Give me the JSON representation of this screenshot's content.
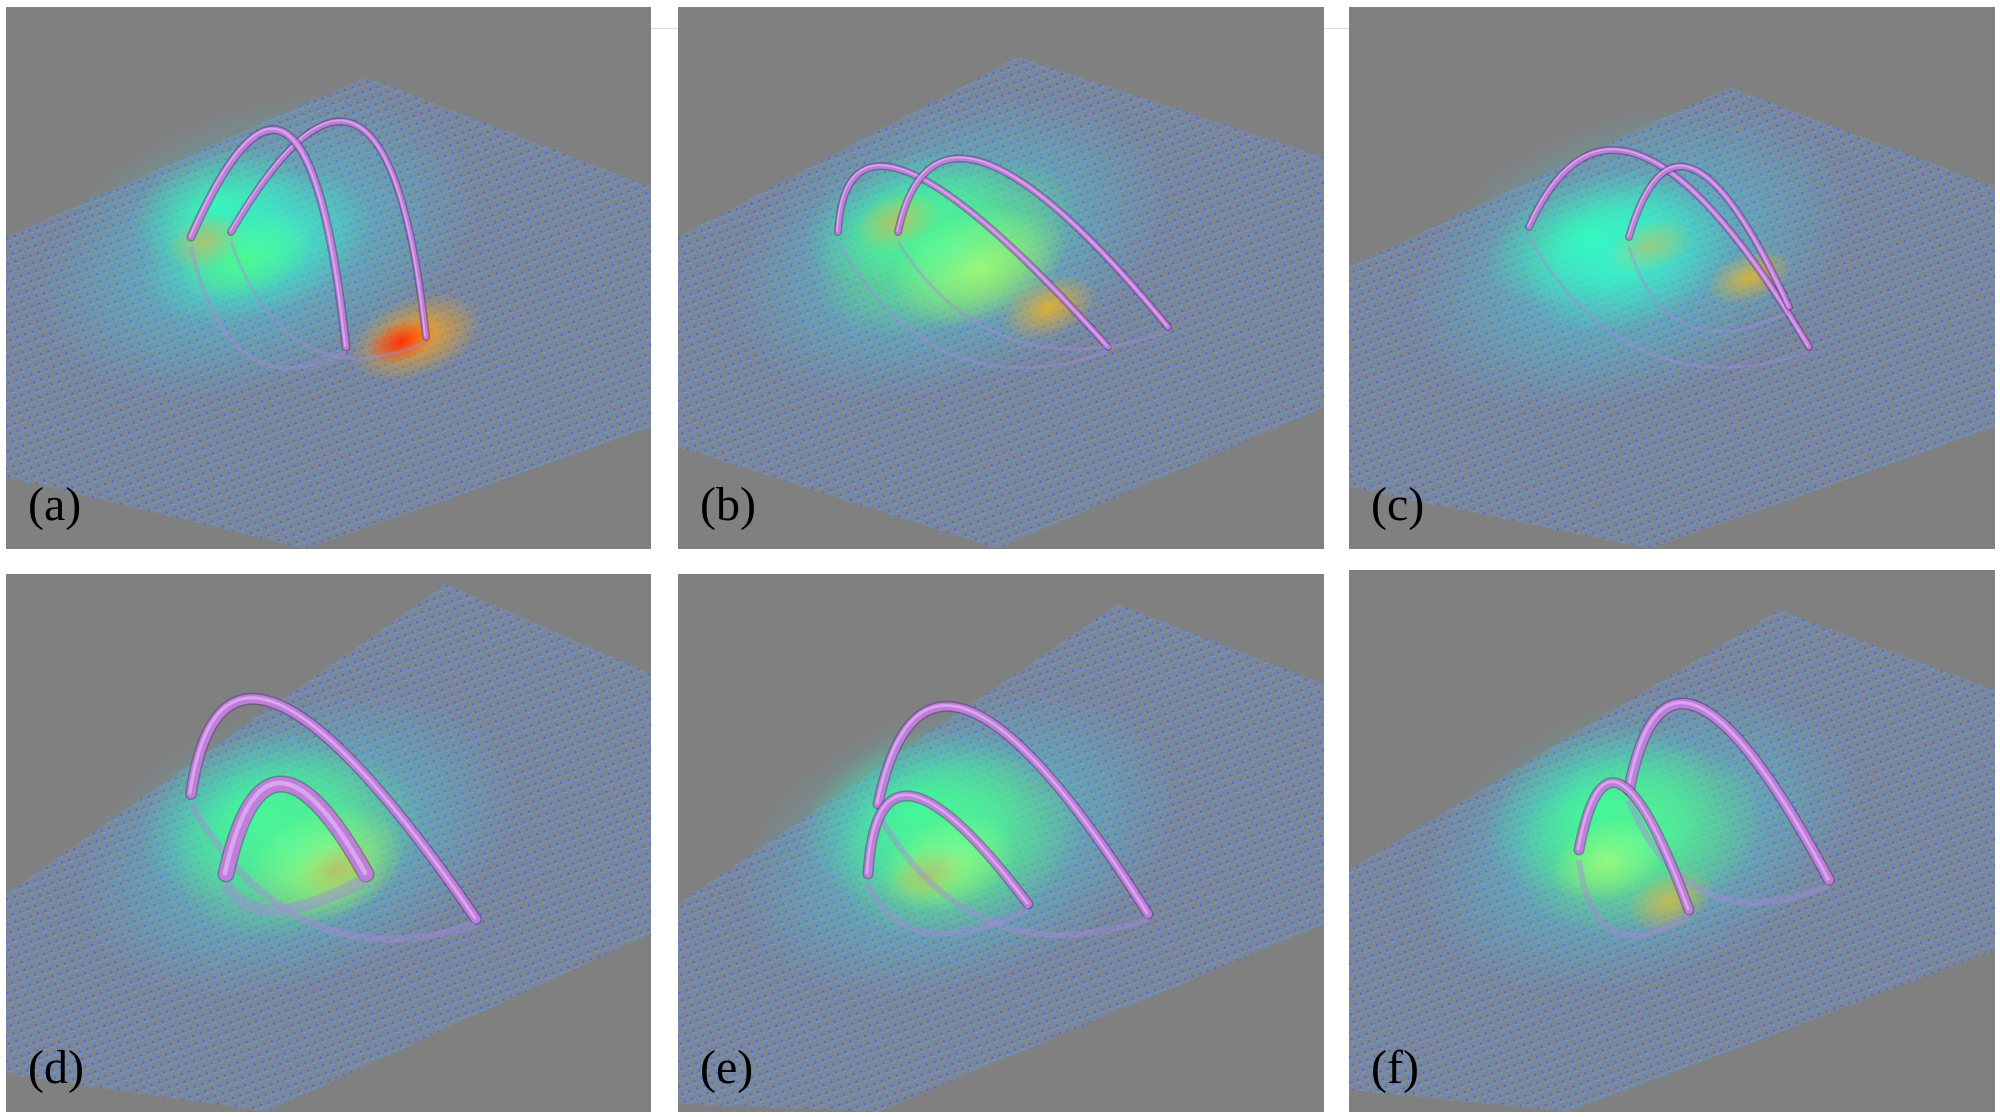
{
  "figure": {
    "background_color": "#808080",
    "loop_color": "#c07ddc",
    "field_colormap": [
      "#1e3cff",
      "#2aa8ff",
      "#2ff2ff",
      "#38ff9a",
      "#6bff22",
      "#e4ff1a",
      "#ffa511",
      "#ff2a0a"
    ],
    "panels": [
      {
        "label": "(a)",
        "variant": "a"
      },
      {
        "label": "(b)",
        "variant": "b"
      },
      {
        "label": "(c)",
        "variant": "c"
      },
      {
        "label": "(d)",
        "variant": "d"
      },
      {
        "label": "(e)",
        "variant": "e"
      },
      {
        "label": "(f)",
        "variant": "f"
      }
    ]
  }
}
